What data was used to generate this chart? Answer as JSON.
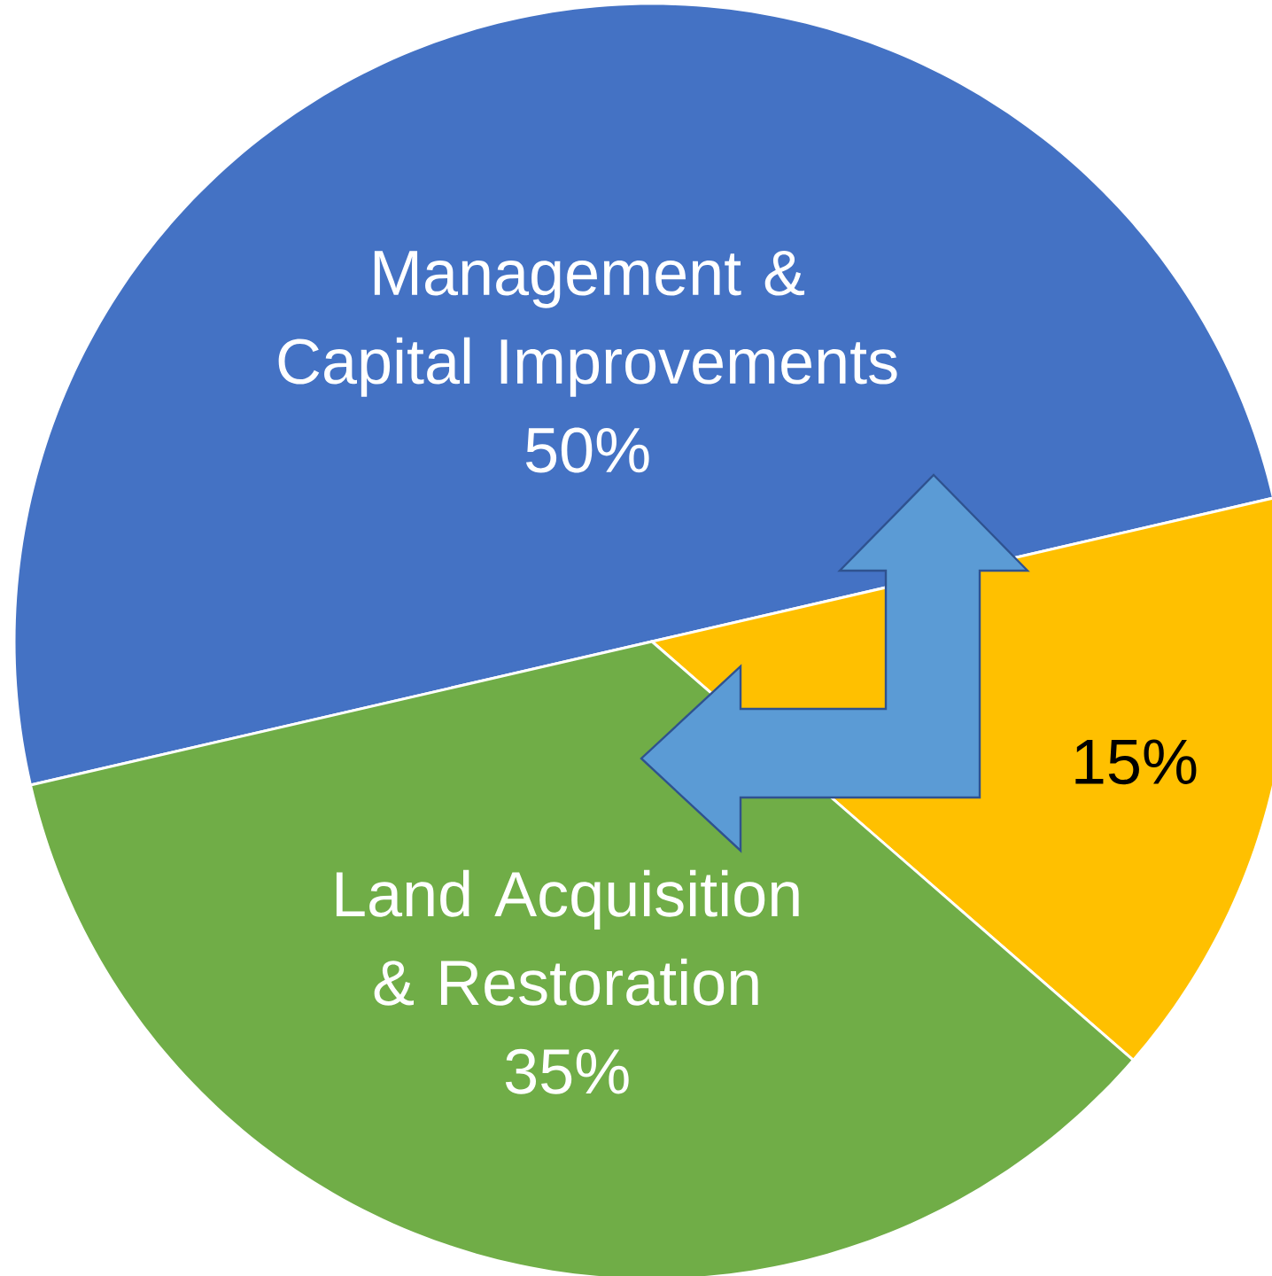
{
  "chart_data": {
    "type": "pie",
    "categories": [
      "Management & Capital Improvements",
      null,
      "Land Acquisition & Restoration"
    ],
    "values": [
      50,
      15,
      35
    ],
    "colors": [
      "#4472c4",
      "#ffc000",
      "#70ad47"
    ],
    "value_labels": [
      "50%",
      "15%",
      "35%"
    ]
  }
}
